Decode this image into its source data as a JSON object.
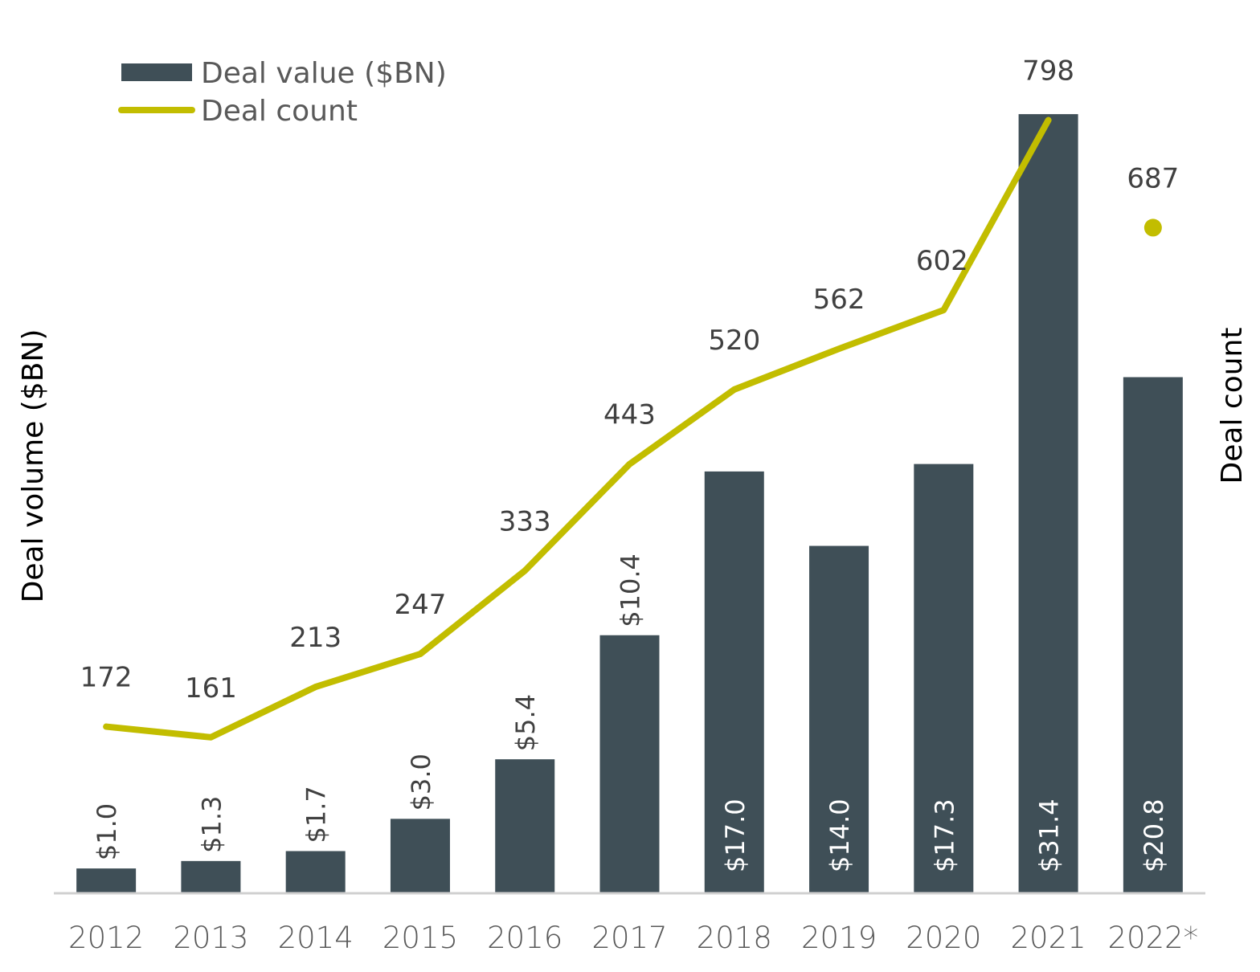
{
  "chart_data": {
    "type": "bar+line",
    "categories": [
      "2012",
      "2013",
      "2014",
      "2015",
      "2016",
      "2017",
      "2018",
      "2019",
      "2020",
      "2021",
      "2022*"
    ],
    "series": [
      {
        "name": "Deal value ($BN)",
        "type": "bar",
        "axis": "left",
        "color": "#3f4f57",
        "values": [
          1.0,
          1.3,
          1.7,
          3.0,
          5.4,
          10.4,
          17.0,
          14.0,
          17.3,
          31.4,
          20.8
        ],
        "labels": [
          "$1.0",
          "$1.3",
          "$1.7",
          "$3.0",
          "$5.4",
          "$10.4",
          "$17.0",
          "$14.0",
          "$17.3",
          "$31.4",
          "$20.8"
        ]
      },
      {
        "name": "Deal count",
        "type": "line",
        "axis": "right",
        "color": "#c2bd00",
        "values": [
          172,
          161,
          213,
          247,
          333,
          443,
          520,
          562,
          602,
          798,
          687
        ],
        "last_point_as_marker_only": true
      }
    ],
    "ylabel": "Deal volume ($BN)",
    "y2label": "Deal count",
    "ylim": [
      0,
      36
    ],
    "y2lim": [
      0,
      922
    ],
    "grid": false,
    "legend": "top-left"
  }
}
